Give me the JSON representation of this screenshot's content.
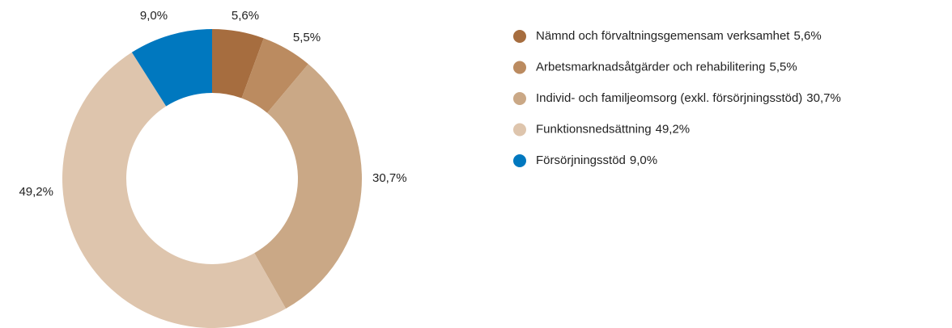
{
  "chart_data": {
    "type": "donut",
    "categories": [
      "Nämnd och förvaltningsgemensam verksamhet",
      "Arbetsmarknadsåtgärder och rehabilitering",
      "Individ- och familjeomsorg (exkl. försörjningsstöd)",
      "Funktionsnedsättning",
      "Försörjningsstöd"
    ],
    "values": [
      5.6,
      5.5,
      30.7,
      49.2,
      9.0
    ],
    "value_labels": [
      "5,6%",
      "5,5%",
      "30,7%",
      "49,2%",
      "9,0%"
    ],
    "colors": [
      "#a66d3f",
      "#bb8b60",
      "#caa886",
      "#dec5ad",
      "#0078bf"
    ],
    "legend": "right"
  }
}
